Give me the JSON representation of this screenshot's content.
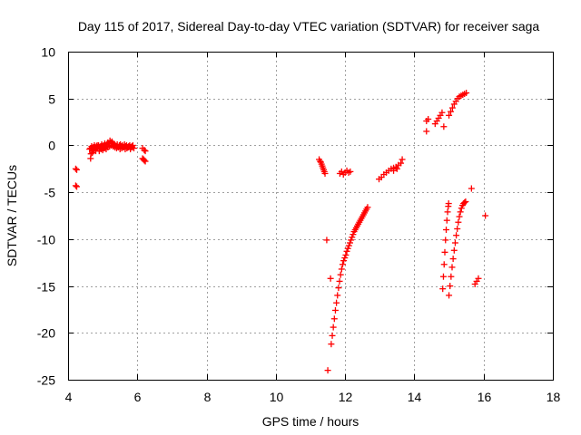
{
  "chart_data": {
    "type": "scatter",
    "title": "Day 115 of 2017, Sidereal Day-to-day VTEC variation (SDTVAR) for receiver saga",
    "xlabel": "GPS time / hours",
    "ylabel": "SDTVAR / TECUs",
    "xlim": [
      4,
      18
    ],
    "ylim": [
      -25,
      10
    ],
    "xticks": [
      4,
      6,
      8,
      10,
      12,
      14,
      16,
      18
    ],
    "yticks": [
      -25,
      -20,
      -15,
      -10,
      -5,
      0,
      5,
      10
    ],
    "xtick_labels": [
      "4",
      "6",
      "8",
      "10",
      "12",
      "14",
      "16",
      "18"
    ],
    "ytick_labels": [
      "-25",
      "-20",
      "-15",
      "-10",
      "-5",
      "0",
      "5",
      "10"
    ],
    "grid": true,
    "marker": "plus",
    "color": "#ff0000",
    "series": [
      {
        "x": [
          4.22,
          4.22,
          4.25,
          4.25,
          4.62,
          4.65,
          4.68,
          4.7,
          4.73,
          4.76,
          4.79,
          4.82,
          4.85,
          4.88,
          4.91,
          4.94,
          4.97,
          5.0,
          5.03,
          5.06,
          5.09,
          5.12,
          5.15,
          5.18,
          5.21,
          5.24,
          5.27,
          5.3,
          5.33,
          5.36,
          5.39,
          5.42,
          5.45,
          5.48,
          5.51,
          5.54,
          5.57,
          5.6,
          5.63,
          5.66,
          5.69,
          5.72,
          5.75,
          5.78,
          5.81,
          5.84,
          5.87,
          5.9,
          4.65,
          4.7,
          4.75,
          4.8,
          4.85,
          4.9,
          4.95,
          5.0,
          5.05,
          5.1,
          5.15,
          5.2,
          5.25,
          5.3,
          5.35,
          5.4,
          5.45,
          5.5,
          5.55,
          5.6,
          5.65,
          5.7,
          5.75,
          5.8,
          5.85,
          4.66,
          4.72,
          4.78,
          4.84,
          4.9,
          4.96,
          5.02,
          6.15,
          6.2,
          6.23,
          6.15,
          6.2,
          6.23,
          6.18,
          11.25,
          11.28,
          11.3,
          11.32,
          11.34,
          11.36,
          11.38,
          11.4,
          11.42,
          11.47,
          11.58,
          11.5,
          11.6,
          11.63,
          11.66,
          11.69,
          11.72,
          11.75,
          11.78,
          11.81,
          11.84,
          11.87,
          11.9,
          11.93,
          11.96,
          11.99,
          12.02,
          12.05,
          12.08,
          12.11,
          12.14,
          12.17,
          12.2,
          12.23,
          12.26,
          12.29,
          12.32,
          12.35,
          12.38,
          12.41,
          12.44,
          12.47,
          12.5,
          12.53,
          12.56,
          12.59,
          12.62,
          12.65,
          11.85,
          11.9,
          11.95,
          12.0,
          12.05,
          12.1,
          12.15,
          12.98,
          13.05,
          13.12,
          13.19,
          13.26,
          13.33,
          13.4,
          13.47,
          13.54,
          13.61,
          13.65,
          13.4,
          13.5,
          14.35,
          14.35,
          14.4,
          14.6,
          14.65,
          14.7,
          14.75,
          14.8,
          14.85,
          15.0,
          15.05,
          15.1,
          15.15,
          15.2,
          15.25,
          15.3,
          15.35,
          15.4,
          15.45,
          15.5,
          14.82,
          14.84,
          14.86,
          14.88,
          14.9,
          14.92,
          14.94,
          14.96,
          14.98,
          14.99,
          15.0,
          15.03,
          15.06,
          15.09,
          15.12,
          15.15,
          15.18,
          15.21,
          15.24,
          15.27,
          15.3,
          15.33,
          15.36,
          15.39,
          15.42,
          15.45,
          15.48,
          15.65,
          15.75,
          15.8,
          15.85,
          16.05
        ],
        "y": [
          -2.5,
          -4.3,
          -2.6,
          -4.4,
          -0.4,
          -0.3,
          -0.1,
          -0.4,
          -0.2,
          0.0,
          -0.3,
          -0.1,
          -0.2,
          0.0,
          -0.2,
          -0.1,
          0.1,
          -0.2,
          0.0,
          0.2,
          -0.1,
          0.1,
          0.3,
          0.2,
          0.5,
          0.3,
          0.4,
          0.2,
          0.1,
          0.0,
          -0.1,
          0.1,
          -0.2,
          0.0,
          0.1,
          -0.1,
          0.0,
          -0.2,
          0.1,
          -0.1,
          0.0,
          -0.2,
          -0.1,
          0.0,
          -0.2,
          -0.1,
          0.0,
          -0.3,
          -1.4,
          -0.8,
          -0.5,
          -0.6,
          -0.3,
          -0.6,
          -0.4,
          -0.5,
          -0.3,
          -0.4,
          -0.2,
          -0.1,
          0.0,
          -0.1,
          -0.2,
          -0.3,
          -0.2,
          -0.4,
          -0.3,
          -0.2,
          -0.4,
          -0.3,
          -0.2,
          -0.4,
          -0.2,
          -0.9,
          -0.6,
          -0.2,
          0.0,
          -0.4,
          -0.1,
          -0.3,
          -0.3,
          -0.5,
          -0.6,
          -1.4,
          -1.6,
          -1.7,
          -1.5,
          -1.5,
          -1.7,
          -1.8,
          -2.0,
          -2.2,
          -2.4,
          -2.6,
          -2.8,
          -3.0,
          -10.1,
          -14.2,
          -24.0,
          -21.2,
          -20.3,
          -19.4,
          -18.5,
          -17.6,
          -16.8,
          -16.0,
          -15.2,
          -14.5,
          -13.8,
          -13.2,
          -12.7,
          -12.3,
          -12.0,
          -11.7,
          -11.3,
          -11.0,
          -10.7,
          -10.4,
          -10.1,
          -9.8,
          -9.5,
          -9.2,
          -9.0,
          -8.8,
          -8.6,
          -8.4,
          -8.2,
          -8.0,
          -7.8,
          -7.6,
          -7.4,
          -7.2,
          -7.0,
          -6.8,
          -6.6,
          -3.0,
          -2.8,
          -3.1,
          -2.9,
          -2.7,
          -2.9,
          -2.8,
          -3.6,
          -3.4,
          -3.1,
          -2.9,
          -2.7,
          -2.5,
          -2.4,
          -2.3,
          -2.1,
          -1.9,
          -1.5,
          -2.7,
          -2.5,
          2.6,
          1.5,
          2.8,
          2.3,
          2.6,
          2.9,
          3.2,
          3.5,
          2.0,
          3.2,
          3.6,
          4.0,
          4.4,
          4.7,
          5.0,
          5.2,
          5.3,
          5.4,
          5.5,
          5.6,
          -15.3,
          -14.0,
          -12.7,
          -11.4,
          -10.1,
          -9.0,
          -8.0,
          -7.1,
          -6.5,
          -6.2,
          -16.0,
          -15.0,
          -14.0,
          -13.0,
          -12.1,
          -11.2,
          -10.4,
          -9.6,
          -8.9,
          -8.2,
          -7.6,
          -7.1,
          -6.7,
          -6.4,
          -6.2,
          -6.1,
          -6.0,
          -4.6,
          -14.8,
          -14.5,
          -14.2,
          -7.5
        ]
      }
    ]
  }
}
